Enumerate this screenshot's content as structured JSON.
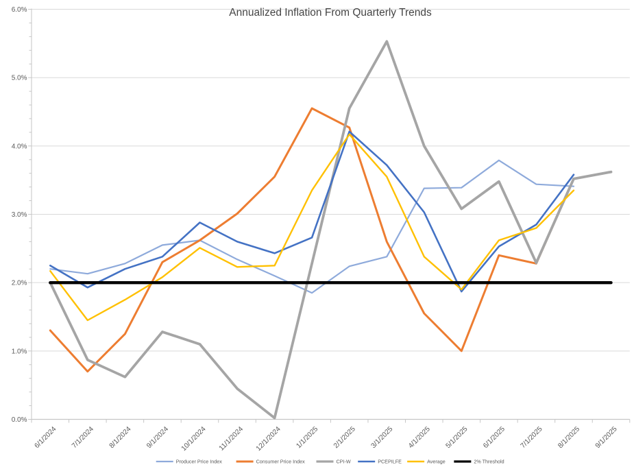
{
  "chart_data": {
    "type": "line",
    "title": "Annualized Inflation From Quarterly Trends",
    "categories": [
      "6/1/2024",
      "7/1/2024",
      "8/1/2024",
      "9/1/2024",
      "10/1/2024",
      "11/1/2024",
      "12/1/2024",
      "1/1/2025",
      "2/1/2025",
      "3/1/2025",
      "4/1/2025",
      "5/1/2025",
      "6/1/2025",
      "7/1/2025",
      "8/1/2025",
      "9/1/2025"
    ],
    "series": [
      {
        "name": "Producer Price Index",
        "color": "#8EAADB",
        "width": 2.2,
        "values": [
          2.2,
          2.13,
          2.28,
          2.55,
          2.62,
          2.34,
          2.1,
          1.85,
          2.24,
          2.38,
          3.38,
          3.39,
          3.79,
          3.44,
          3.41,
          null
        ]
      },
      {
        "name": "Consumer Price Index",
        "color": "#ED7D31",
        "width": 3.0,
        "values": [
          1.3,
          0.7,
          1.25,
          2.3,
          2.62,
          3.01,
          3.55,
          4.55,
          4.27,
          2.6,
          1.55,
          1.0,
          2.4,
          2.28,
          3.52,
          3.62
        ]
      },
      {
        "name": "CPI-W",
        "color": "#A5A5A5",
        "width": 3.8,
        "values": [
          2.0,
          0.87,
          0.62,
          1.28,
          1.1,
          0.45,
          0.02,
          2.28,
          4.55,
          5.53,
          4.0,
          3.08,
          3.48,
          2.29,
          3.52,
          3.62
        ]
      },
      {
        "name": "PCEPILFE",
        "color": "#4472C4",
        "width": 2.6,
        "values": [
          2.25,
          1.93,
          2.2,
          2.38,
          2.88,
          2.6,
          2.43,
          2.66,
          4.21,
          3.72,
          3.03,
          1.87,
          2.53,
          2.85,
          3.58,
          null
        ]
      },
      {
        "name": "Average",
        "color": "#FFC000",
        "width": 2.4,
        "values": [
          2.17,
          1.45,
          1.75,
          2.08,
          2.51,
          2.23,
          2.25,
          3.35,
          4.17,
          3.55,
          2.38,
          1.9,
          2.62,
          2.8,
          3.35,
          null
        ]
      },
      {
        "name": "2% Threshold",
        "color": "#000000",
        "width": 4.4,
        "values": [
          2.0,
          2.0,
          2.0,
          2.0,
          2.0,
          2.0,
          2.0,
          2.0,
          2.0,
          2.0,
          2.0,
          2.0,
          2.0,
          2.0,
          2.0,
          2.0
        ]
      }
    ],
    "y_axis": {
      "min": 0,
      "max": 6,
      "major_step": 1,
      "minor_step": 0.2,
      "labels": [
        "0.0%",
        "1.0%",
        "2.0%",
        "3.0%",
        "4.0%",
        "5.0%",
        "6.0%"
      ]
    },
    "x_axis": {
      "label_rotation_deg": -45
    },
    "legend_position": "bottom",
    "grid": "horizontal-major",
    "colors": {
      "gridline": "#D9D9D9",
      "axis_line": "#C6C6C6",
      "tick": "#C6C6C6",
      "title_text": "#444444",
      "axis_text": "#595959",
      "legend_text": "#595959"
    }
  }
}
